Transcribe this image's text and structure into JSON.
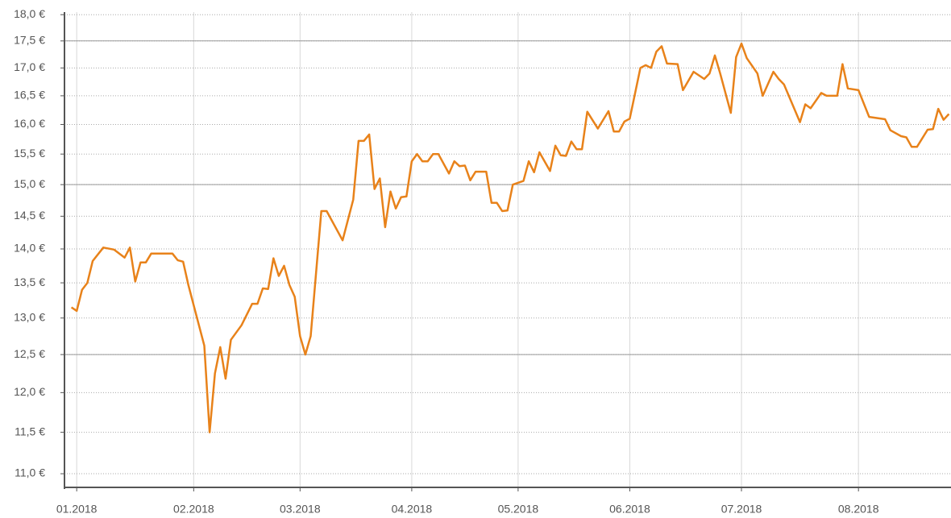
{
  "chart_data": {
    "type": "line",
    "log_y": true,
    "grid": true,
    "x": [
      -1,
      0,
      1,
      2,
      3,
      5,
      7,
      9,
      10,
      11,
      12,
      13,
      14,
      18,
      19,
      20,
      21,
      24,
      25,
      26,
      27,
      28,
      29,
      31,
      33,
      34,
      35,
      36,
      37,
      38,
      39,
      40,
      41,
      42,
      43,
      44,
      46,
      47,
      50,
      52,
      53,
      54,
      55,
      56,
      57,
      58,
      59,
      60,
      61,
      62,
      63,
      64,
      65,
      66,
      67,
      68,
      70,
      71,
      72,
      73,
      74,
      75,
      77,
      78,
      79,
      80,
      81,
      82,
      84,
      85,
      86,
      87,
      89,
      90,
      91,
      92,
      93,
      94,
      95,
      96,
      98,
      100,
      101,
      102,
      103,
      104,
      106,
      107,
      108,
      109,
      110,
      111,
      113,
      114,
      116,
      118,
      119,
      120,
      121,
      123,
      124,
      125,
      126,
      128,
      129,
      131,
      132,
      133,
      136,
      137,
      138,
      140,
      141,
      143,
      144,
      145,
      147,
      149,
      152,
      153,
      155,
      156,
      157,
      158,
      160,
      161,
      162,
      163,
      164
    ],
    "series": [
      {
        "color": "#e8821a",
        "values": [
          13.15,
          13.1,
          13.4,
          13.5,
          13.82,
          14.02,
          13.99,
          13.87,
          14.02,
          13.52,
          13.8,
          13.8,
          13.93,
          13.93,
          13.83,
          13.81,
          13.47,
          12.62,
          11.5,
          12.25,
          12.6,
          12.18,
          12.7,
          12.9,
          13.2,
          13.2,
          13.42,
          13.41,
          13.86,
          13.6,
          13.75,
          13.47,
          13.3,
          12.75,
          12.5,
          12.75,
          14.58,
          14.58,
          14.13,
          14.76,
          15.72,
          15.72,
          15.83,
          14.93,
          15.1,
          14.33,
          14.89,
          14.62,
          14.8,
          14.81,
          15.38,
          15.5,
          15.38,
          15.38,
          15.5,
          15.5,
          15.18,
          15.38,
          15.3,
          15.31,
          15.07,
          15.21,
          15.21,
          14.71,
          14.71,
          14.58,
          14.59,
          15.0,
          15.06,
          15.38,
          15.2,
          15.53,
          15.22,
          15.64,
          15.48,
          15.47,
          15.71,
          15.58,
          15.58,
          16.22,
          15.93,
          16.23,
          15.88,
          15.88,
          16.05,
          16.1,
          17.0,
          17.05,
          17.0,
          17.3,
          17.4,
          17.08,
          17.07,
          16.6,
          16.93,
          16.8,
          16.9,
          17.23,
          16.9,
          16.2,
          17.2,
          17.45,
          17.18,
          16.9,
          16.5,
          16.93,
          16.8,
          16.7,
          16.04,
          16.35,
          16.28,
          16.55,
          16.5,
          16.5,
          17.07,
          16.63,
          16.6,
          16.13,
          16.09,
          15.9,
          15.8,
          15.78,
          15.62,
          15.62,
          15.91,
          15.92,
          16.27,
          16.08,
          16.18
        ]
      }
    ],
    "xlim": [
      -2.3,
      164.4
    ],
    "xticks": [
      {
        "value": 0,
        "label": "01.2018"
      },
      {
        "value": 22,
        "label": "02.2018"
      },
      {
        "value": 42,
        "label": "03.2018"
      },
      {
        "value": 63,
        "label": "04.2018"
      },
      {
        "value": 83,
        "label": "05.2018"
      },
      {
        "value": 104,
        "label": "06.2018"
      },
      {
        "value": 125,
        "label": "07.2018"
      },
      {
        "value": 147,
        "label": "08.2018"
      }
    ],
    "ylim": [
      10.84,
      18.05
    ],
    "yticks": [
      {
        "value": 11,
        "label": "11,0 €"
      },
      {
        "value": 11.5,
        "label": "11,5 €"
      },
      {
        "value": 12,
        "label": "12,0 €"
      },
      {
        "value": 12.5,
        "label": "12,5 €"
      },
      {
        "value": 13,
        "label": "13,0 €"
      },
      {
        "value": 13.5,
        "label": "13,5 €"
      },
      {
        "value": 14,
        "label": "14,0 €"
      },
      {
        "value": 14.5,
        "label": "14,5 €"
      },
      {
        "value": 15,
        "label": "15,0 €"
      },
      {
        "value": 15.5,
        "label": "15,5 €"
      },
      {
        "value": 16,
        "label": "16,0 €"
      },
      {
        "value": 16.5,
        "label": "16,5 €"
      },
      {
        "value": 17,
        "label": "17,0 €"
      },
      {
        "value": 17.5,
        "label": "17,5 €"
      },
      {
        "value": 18,
        "label": "18,0 €"
      }
    ],
    "major_yticks": [
      12.5,
      15,
      17.5
    ]
  }
}
